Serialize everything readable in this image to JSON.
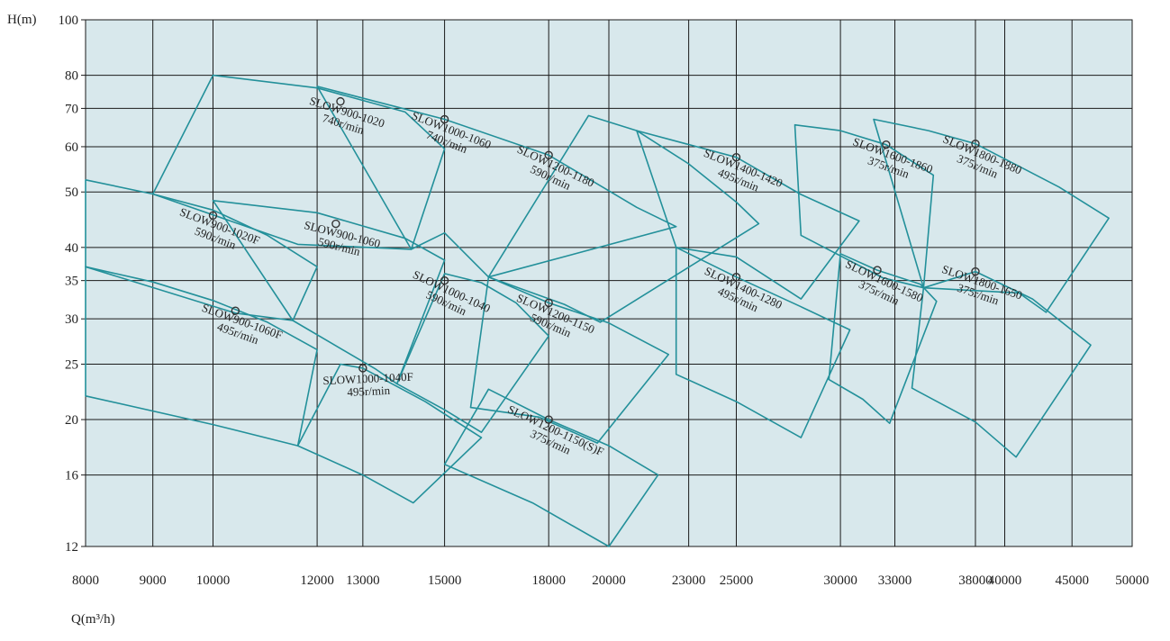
{
  "chart_data": {
    "type": "line",
    "xlabel": "Q(m³/h)",
    "ylabel": "H(m)",
    "x_scale": "log",
    "y_scale": "log",
    "xlim": [
      8000,
      50000
    ],
    "ylim": [
      12,
      100
    ],
    "grid": true,
    "x_ticks": [
      8000,
      9000,
      10000,
      12000,
      13000,
      15000,
      18000,
      20000,
      23000,
      25000,
      30000,
      33000,
      38000,
      40000,
      45000,
      50000
    ],
    "x_tick_labels": [
      "8000",
      "9000",
      "10000",
      "12000",
      "13000",
      "15000",
      "18000",
      "20000",
      "23000",
      "25000",
      "30000",
      "33000",
      "38000",
      "40000",
      "45000",
      "50000"
    ],
    "y_ticks": [
      12,
      16,
      20,
      25,
      30,
      35,
      40,
      50,
      60,
      70,
      80,
      100
    ],
    "y_tick_labels": [
      "12",
      "16",
      "20",
      "25",
      "30",
      "35",
      "40",
      "50",
      "60",
      "70",
      "80",
      "100"
    ],
    "colors": {
      "background": "#d8e8ec",
      "grid": "#1a1a1a",
      "curve": "#23909a",
      "point": "#333333"
    },
    "series": [
      {
        "name": "SLOW900-1020",
        "speed": "740r/min",
        "points": [
          [
            10000,
            80
          ],
          [
            12000,
            76
          ],
          [
            14000,
            69
          ],
          [
            15000,
            59.5
          ]
        ],
        "lower": [
          [
            9000,
            49.6
          ],
          [
            11600,
            40.5
          ],
          [
            14150,
            39.7
          ]
        ],
        "bep": [
          12500,
          72
        ]
      },
      {
        "name": "SLOW900-1020F",
        "speed": "590r/min",
        "points": [
          [
            8000,
            52.5
          ],
          [
            9000,
            49.6
          ],
          [
            10000,
            46.5
          ],
          [
            11000,
            42
          ],
          [
            12000,
            37
          ]
        ],
        "lower": [
          [
            8000,
            37
          ],
          [
            10400,
            30.7
          ],
          [
            11500,
            29.8
          ]
        ],
        "bep": [
          10000,
          45.5
        ]
      },
      {
        "name": "SLOW900-1060",
        "speed": "590r/min",
        "points": [
          [
            10000,
            48.3
          ],
          [
            12000,
            46
          ],
          [
            14000,
            41.5
          ],
          [
            15000,
            38
          ]
        ],
        "lower": [
          [
            11500,
            29.8
          ],
          [
            13300,
            24.5
          ],
          [
            13800,
            23.1
          ]
        ],
        "bep": [
          12400,
          44
        ]
      },
      {
        "name": "SLOW900-1060F",
        "speed": "495r/min",
        "points": [
          [
            8000,
            37
          ],
          [
            9000,
            34.8
          ],
          [
            10000,
            32.3
          ],
          [
            11000,
            29.6
          ],
          [
            12000,
            26.5
          ]
        ],
        "lower": [
          [
            8000,
            22
          ],
          [
            10000,
            19.6
          ],
          [
            11600,
            18
          ]
        ],
        "bep": [
          10400,
          31
        ]
      },
      {
        "name": "SLOW1000-1040",
        "speed": "590r/min",
        "points": [
          [
            15000,
            36
          ],
          [
            16000,
            34.7
          ],
          [
            17000,
            32
          ],
          [
            18000,
            28
          ]
        ],
        "lower": [
          [
            13800,
            23.1
          ],
          [
            15000,
            20.8
          ],
          [
            16000,
            19
          ]
        ],
        "bep": [
          15000,
          35
        ]
      },
      {
        "name": "SLOW1000-1040F",
        "speed": "495r/min",
        "points": [
          [
            11600,
            18
          ],
          [
            12500,
            25
          ],
          [
            13000,
            24.6
          ],
          [
            14500,
            21.5
          ],
          [
            16000,
            18.6
          ]
        ],
        "lower": [
          [
            11600,
            18
          ],
          [
            13000,
            16
          ],
          [
            14200,
            14.3
          ]
        ],
        "bep": [
          13000,
          24.6
        ]
      },
      {
        "name": "SLOW1000-1060",
        "speed": "740r/min",
        "points": [
          [
            12000,
            76.5
          ],
          [
            15000,
            67
          ],
          [
            18000,
            58
          ],
          [
            21000,
            47
          ],
          [
            22500,
            43.5
          ]
        ],
        "lower": [
          [
            14150,
            39.7
          ],
          [
            15000,
            42.4
          ],
          [
            16200,
            35.5
          ]
        ],
        "bep": [
          15000,
          67
        ]
      },
      {
        "name": "SLOW1200-1180",
        "speed": "590r/min",
        "points": [
          [
            19300,
            68
          ],
          [
            21000,
            64
          ],
          [
            23000,
            56
          ],
          [
            25000,
            48
          ],
          [
            26000,
            44
          ]
        ],
        "lower": [
          [
            16200,
            35.5
          ],
          [
            18500,
            31.8
          ],
          [
            19700,
            29.6
          ]
        ],
        "bep": [
          18000,
          58
        ]
      },
      {
        "name": "SLOW1200-1150",
        "speed": "590r/min",
        "points": [
          [
            16200,
            35.5
          ],
          [
            18000,
            32
          ],
          [
            20000,
            29.5
          ],
          [
            22200,
            26
          ]
        ],
        "lower": [
          [
            15700,
            21
          ],
          [
            17700,
            20.2
          ],
          [
            19600,
            18.2
          ]
        ],
        "bep": [
          18000,
          32
        ]
      },
      {
        "name": "SLOW1200-1150(S)F",
        "speed": "375r/min",
        "points": [
          [
            16200,
            22.6
          ],
          [
            18000,
            20
          ],
          [
            20000,
            18
          ],
          [
            21800,
            16
          ]
        ],
        "lower": [
          [
            15000,
            16.7
          ],
          [
            17500,
            14.3
          ],
          [
            20000,
            12
          ]
        ],
        "bep": [
          18000,
          20
        ]
      },
      {
        "name": "SLOW1400-1420",
        "speed": "495r/min",
        "points": [
          [
            21000,
            64
          ],
          [
            25000,
            57.5
          ],
          [
            28000,
            49.5
          ],
          [
            31000,
            44.5
          ]
        ],
        "lower": [
          [
            22500,
            40
          ],
          [
            25000,
            38.5
          ],
          [
            28000,
            32.5
          ]
        ],
        "bep": [
          25000,
          57.5
        ]
      },
      {
        "name": "SLOW1400-1280",
        "speed": "495r/min",
        "points": [
          [
            22500,
            40
          ],
          [
            25000,
            35.5
          ],
          [
            28000,
            31.5
          ],
          [
            30500,
            28.7
          ]
        ],
        "lower": [
          [
            22500,
            24
          ],
          [
            25000,
            21.5
          ],
          [
            28000,
            18.6
          ]
        ],
        "bep": [
          25000,
          35.5
        ]
      },
      {
        "name": "SLOW1600-1860",
        "speed": "375r/min",
        "points": [
          [
            27700,
            65.5
          ],
          [
            30000,
            64
          ],
          [
            32500,
            60.5
          ],
          [
            35300,
            53.5
          ]
        ],
        "lower": [
          [
            28000,
            42
          ],
          [
            32300,
            35.4
          ],
          [
            34700,
            34
          ]
        ],
        "bep": [
          32500,
          60.5
        ]
      },
      {
        "name": "SLOW1600-1580",
        "speed": "375r/min",
        "points": [
          [
            30000,
            39
          ],
          [
            32000,
            36.5
          ],
          [
            34500,
            34.5
          ],
          [
            35500,
            32.2
          ]
        ],
        "lower": [
          [
            29400,
            23.5
          ],
          [
            31200,
            21.7
          ],
          [
            32700,
            19.7
          ]
        ],
        "bep": [
          32000,
          36.5
        ]
      },
      {
        "name": "SLOW1800-1880",
        "speed": "375r/min",
        "points": [
          [
            31800,
            67
          ],
          [
            35000,
            64
          ],
          [
            38000,
            60.7
          ],
          [
            44000,
            51
          ],
          [
            48000,
            45
          ]
        ],
        "lower": [
          [
            34700,
            34
          ],
          [
            41000,
            33.3
          ],
          [
            43000,
            30.8
          ]
        ],
        "bep": [
          38000,
          60.7
        ]
      },
      {
        "name": "SLOW1800-1650",
        "speed": "375r/min",
        "points": [
          [
            34700,
            34
          ],
          [
            38000,
            36.3
          ],
          [
            42000,
            32.5
          ],
          [
            46500,
            27
          ]
        ],
        "lower": [
          [
            34000,
            22.7
          ],
          [
            38000,
            19.8
          ],
          [
            40800,
            17.2
          ]
        ],
        "bep": [
          38000,
          36.3
        ]
      }
    ]
  }
}
